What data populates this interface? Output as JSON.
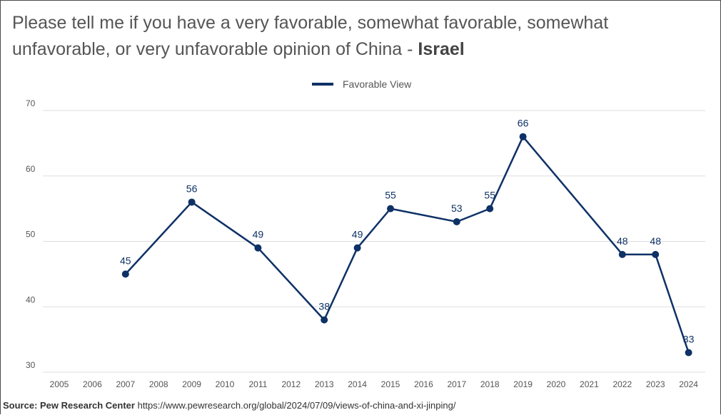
{
  "title": {
    "question": "Please tell me if you have a very favorable, somewhat favorable, somewhat unfavorable, or very unfavorable opinion of China - ",
    "country": "Israel"
  },
  "source": {
    "label": "Source: Pew Research Center",
    "url": "https://www.pewresearch.org/global/2024/07/09/views-of-china-and-xi-jinping/"
  },
  "colors": {
    "series": "#0e3166",
    "grid": "#dddddd"
  },
  "chart_data": {
    "type": "line",
    "title": "Please tell me if you have a very favorable, somewhat favorable, somewhat unfavorable, or very unfavorable opinion of China - Israel",
    "x": [
      "2005",
      "2006",
      "2007",
      "2008",
      "2009",
      "2010",
      "2011",
      "2012",
      "2013",
      "2014",
      "2015",
      "2016",
      "2017",
      "2018",
      "2019",
      "2020",
      "2021",
      "2022",
      "2023",
      "2024"
    ],
    "series": [
      {
        "name": "Favorable View",
        "values": [
          null,
          null,
          45,
          null,
          56,
          null,
          49,
          null,
          38,
          49,
          55,
          null,
          53,
          55,
          66,
          null,
          null,
          48,
          48,
          33
        ]
      }
    ],
    "yticks": [
      30,
      40,
      50,
      60,
      70
    ],
    "ylim": [
      30,
      70
    ],
    "grid": true,
    "legend": "top-center",
    "xlabel": "",
    "ylabel": ""
  }
}
